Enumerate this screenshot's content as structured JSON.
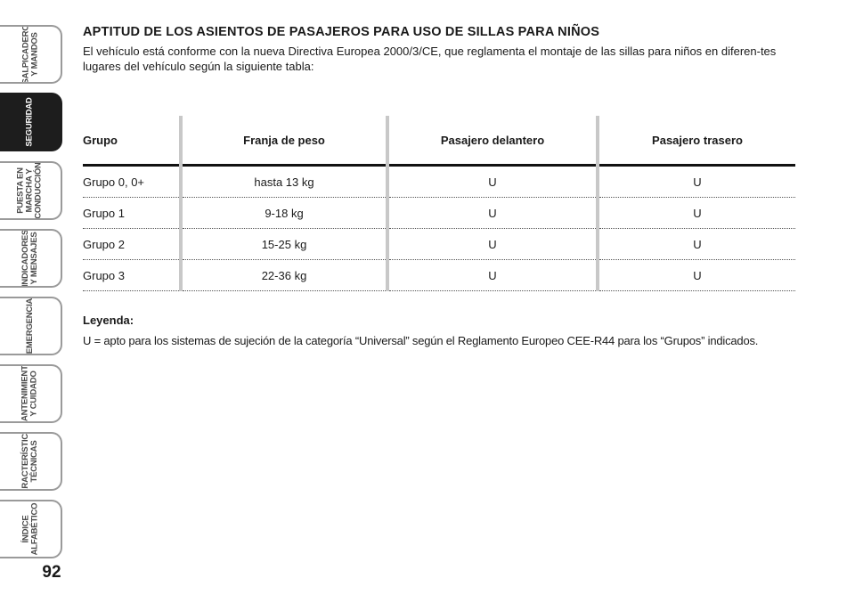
{
  "side_tabs": [
    {
      "label": "SALPICADERO\nY MANDOS",
      "active": false
    },
    {
      "label": "SEGURIDAD",
      "active": true
    },
    {
      "label": "PUESTA EN\nMARCHA Y\nCONDUCCIÓN",
      "active": false
    },
    {
      "label": "INDICADORES\nY MENSAJES",
      "active": false
    },
    {
      "label": "EMERGENCIA",
      "active": false
    },
    {
      "label": "MANTENIMIENTO\nY CUIDADO",
      "active": false
    },
    {
      "label": "CARACTERÍSTICAS\nTÉCNICAS",
      "active": false
    },
    {
      "label": "ÍNDICE\nALFABÉTICO",
      "active": false
    }
  ],
  "page_number": "92",
  "section": {
    "title": "APTITUD DE LOS ASIENTOS DE PASAJEROS PARA USO DE SILLAS PARA NIÑOS",
    "intro": "El vehículo está conforme con la nueva Directiva Europea 2000/3/CE, que reglamenta el montaje de las sillas para niños en diferen-tes lugares del vehículo según la siguiente tabla:"
  },
  "table": {
    "headers": [
      "Grupo",
      "Franja de peso",
      "Pasajero delantero",
      "Pasajero trasero"
    ],
    "rows": [
      [
        "Grupo 0, 0+",
        "hasta 13 kg",
        "U",
        "U"
      ],
      [
        "Grupo 1",
        "9-18 kg",
        "U",
        "U"
      ],
      [
        "Grupo 2",
        "15-25 kg",
        "U",
        "U"
      ],
      [
        "Grupo 3",
        "22-36 kg",
        "U",
        "U"
      ]
    ]
  },
  "legend": {
    "title": "Leyenda:",
    "text": "U = apto para los sistemas de sujeción de la categoría “Universal” según el Reglamento Europeo CEE-R44 para los “Grupos” indicados."
  }
}
